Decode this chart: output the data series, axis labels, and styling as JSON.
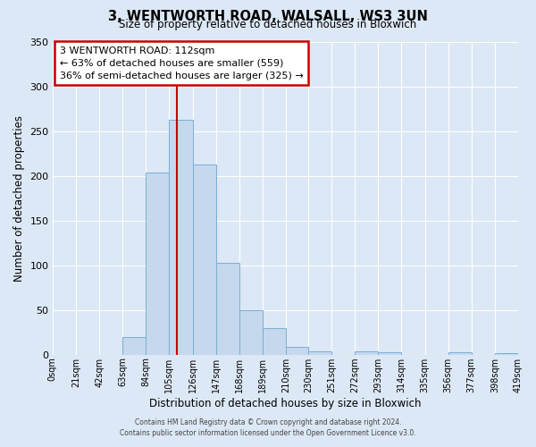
{
  "title": "3, WENTWORTH ROAD, WALSALL, WS3 3UN",
  "subtitle": "Size of property relative to detached houses in Bloxwich",
  "xlabel": "Distribution of detached houses by size in Bloxwich",
  "ylabel": "Number of detached properties",
  "bar_color": "#c5d8ed",
  "bar_edge_color": "#7aaed6",
  "background_color": "#dce8f5",
  "grid_color": "#ffffff",
  "bin_edges": [
    0,
    21,
    42,
    63,
    84,
    105,
    126,
    147,
    168,
    189,
    210,
    230,
    251,
    272,
    293,
    314,
    335,
    356,
    377,
    398,
    419
  ],
  "bin_labels": [
    "0sqm",
    "21sqm",
    "42sqm",
    "63sqm",
    "84sqm",
    "105sqm",
    "126sqm",
    "147sqm",
    "168sqm",
    "189sqm",
    "210sqm",
    "230sqm",
    "251sqm",
    "272sqm",
    "293sqm",
    "314sqm",
    "335sqm",
    "356sqm",
    "377sqm",
    "398sqm",
    "419sqm"
  ],
  "bar_heights": [
    0,
    0,
    0,
    20,
    204,
    263,
    213,
    103,
    50,
    30,
    9,
    4,
    0,
    4,
    3,
    0,
    0,
    3,
    0,
    2,
    0
  ],
  "vline_x": 112,
  "vline_color": "#cc0000",
  "ylim": [
    0,
    350
  ],
  "yticks": [
    0,
    50,
    100,
    150,
    200,
    250,
    300,
    350
  ],
  "annotation_title": "3 WENTWORTH ROAD: 112sqm",
  "annotation_line1": "← 63% of detached houses are smaller (559)",
  "annotation_line2": "36% of semi-detached houses are larger (325) →",
  "annotation_box_color": "#ffffff",
  "annotation_box_edge_color": "#cc0000",
  "footer1": "Contains HM Land Registry data © Crown copyright and database right 2024.",
  "footer2": "Contains public sector information licensed under the Open Government Licence v3.0."
}
